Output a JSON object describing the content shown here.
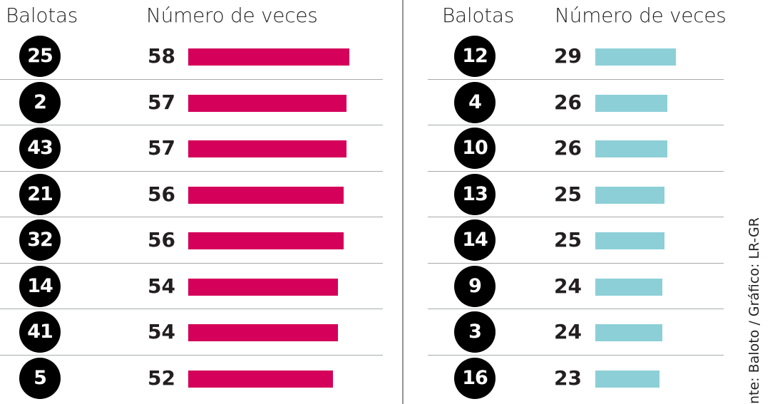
{
  "chart_data": [
    {
      "type": "bar",
      "orientation": "horizontal",
      "color": "#d4005a",
      "headers": {
        "balls": "Balotas",
        "count": "Número de veces"
      },
      "categories": [
        "25",
        "2",
        "43",
        "21",
        "32",
        "14",
        "41",
        "5"
      ],
      "values": [
        58,
        57,
        57,
        56,
        56,
        54,
        54,
        52
      ],
      "xlim": [
        0,
        58
      ]
    },
    {
      "type": "bar",
      "orientation": "horizontal",
      "color": "#8ccfd7",
      "headers": {
        "balls": "Balotas",
        "count": "Número de veces"
      },
      "categories": [
        "12",
        "4",
        "10",
        "13",
        "14",
        "9",
        "3",
        "16"
      ],
      "values": [
        29,
        26,
        26,
        25,
        25,
        24,
        24,
        23
      ],
      "xlim": [
        0,
        58
      ]
    }
  ],
  "source": "nte: Baloto / Gráfico: LR-GR"
}
